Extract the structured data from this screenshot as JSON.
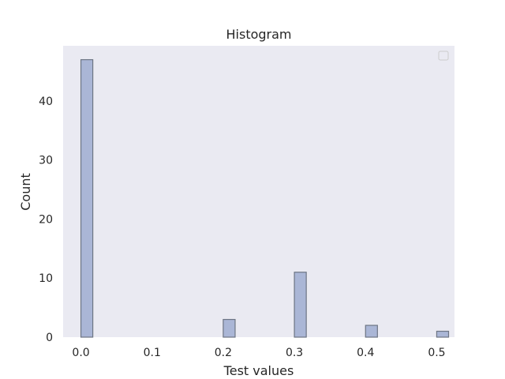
{
  "chart_data": {
    "type": "bar",
    "title": "Histogram",
    "xlabel": "Test values",
    "ylabel": "Count",
    "xlim": [
      -0.025,
      0.525
    ],
    "ylim": [
      0,
      49.35
    ],
    "xticks": [
      0.0,
      0.1,
      0.2,
      0.3,
      0.4,
      0.5
    ],
    "xtick_labels": [
      "0.0",
      "0.1",
      "0.2",
      "0.3",
      "0.4",
      "0.5"
    ],
    "yticks": [
      0,
      10,
      20,
      30,
      40
    ],
    "ytick_labels": [
      "0",
      "10",
      "20",
      "30",
      "40"
    ],
    "bin_width": 0.0167,
    "bins": [
      {
        "x": 0.0,
        "count": 47
      },
      {
        "x": 0.2,
        "count": 3
      },
      {
        "x": 0.3,
        "count": 11
      },
      {
        "x": 0.4,
        "count": 2
      },
      {
        "x": 0.5,
        "count": 1
      }
    ],
    "grid": false,
    "legend": "top-right",
    "colors": {
      "plot_background": "#eaeaf2",
      "bar_fill": "#aab6d6",
      "bar_edge": "#6d7584",
      "text": "#262626"
    }
  }
}
